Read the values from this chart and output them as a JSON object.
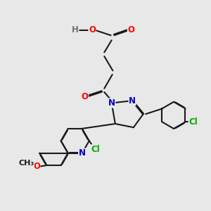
{
  "background_color": "#e8e8e8",
  "bond_color": "#1a1a1a",
  "bond_width": 1.5,
  "atom_colors": {
    "O": "#ff0000",
    "N": "#0000cd",
    "Cl": "#00aa00",
    "H": "#707070",
    "C": "#1a1a1a"
  },
  "font_size": 8.5
}
